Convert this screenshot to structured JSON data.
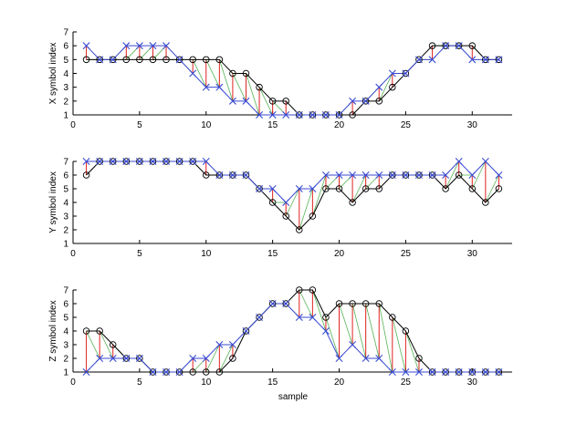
{
  "figure": {
    "xlabel": "sample"
  },
  "chart_data": [
    {
      "type": "line",
      "ylabel": "X  symbol index",
      "xlim": [
        0,
        33
      ],
      "ylim": [
        1,
        7
      ],
      "xticks": [
        0,
        5,
        10,
        15,
        20,
        25,
        30
      ],
      "yticks": [
        1,
        2,
        3,
        4,
        5,
        6,
        7
      ],
      "grid": false,
      "colors": {
        "circles": "#000000",
        "crosses": "#3a4bd1",
        "error": "#e02020",
        "match": "#2aa02a"
      },
      "x": [
        1,
        2,
        3,
        4,
        5,
        6,
        7,
        8,
        9,
        10,
        11,
        12,
        13,
        14,
        15,
        16,
        17,
        18,
        19,
        20,
        21,
        22,
        23,
        24,
        25,
        26,
        27,
        28,
        29,
        30,
        31,
        32
      ],
      "series": [
        {
          "marker": "circle",
          "values": [
            5,
            5,
            5,
            5,
            5,
            5,
            5,
            5,
            5,
            5,
            5,
            4,
            4,
            3,
            2,
            2,
            1,
            1,
            1,
            1,
            1,
            2,
            2,
            3,
            4,
            5,
            6,
            6,
            6,
            6,
            5,
            5
          ]
        },
        {
          "marker": "cross",
          "values": [
            6,
            5,
            5,
            6,
            6,
            6,
            6,
            5,
            4,
            3,
            3,
            2,
            2,
            1,
            1,
            1,
            1,
            1,
            1,
            1,
            2,
            2,
            3,
            4,
            4,
            5,
            5,
            6,
            6,
            5,
            5,
            5
          ]
        }
      ]
    },
    {
      "type": "line",
      "ylabel": "Y  symbol index",
      "xlim": [
        0,
        33
      ],
      "ylim": [
        1,
        7
      ],
      "xticks": [
        0,
        5,
        10,
        15,
        20,
        25,
        30
      ],
      "yticks": [
        1,
        2,
        3,
        4,
        5,
        6,
        7
      ],
      "grid": false,
      "colors": {
        "circles": "#000000",
        "crosses": "#3a4bd1",
        "error": "#e02020",
        "match": "#2aa02a"
      },
      "x": [
        1,
        2,
        3,
        4,
        5,
        6,
        7,
        8,
        9,
        10,
        11,
        12,
        13,
        14,
        15,
        16,
        17,
        18,
        19,
        20,
        21,
        22,
        23,
        24,
        25,
        26,
        27,
        28,
        29,
        30,
        31,
        32
      ],
      "series": [
        {
          "marker": "circle",
          "values": [
            6,
            7,
            7,
            7,
            7,
            7,
            7,
            7,
            7,
            6,
            6,
            6,
            6,
            5,
            4,
            3,
            2,
            3,
            5,
            5,
            4,
            5,
            5,
            6,
            6,
            6,
            6,
            5,
            6,
            5,
            4,
            5
          ]
        },
        {
          "marker": "cross",
          "values": [
            7,
            7,
            7,
            7,
            7,
            7,
            7,
            7,
            7,
            7,
            6,
            6,
            6,
            5,
            5,
            4,
            5,
            5,
            6,
            6,
            6,
            6,
            6,
            6,
            6,
            6,
            6,
            6,
            7,
            6,
            7,
            6
          ]
        }
      ]
    },
    {
      "type": "line",
      "ylabel": "Z  symbol index",
      "xlabel": "sample",
      "xlim": [
        0,
        33
      ],
      "ylim": [
        1,
        7
      ],
      "xticks": [
        0,
        5,
        10,
        15,
        20,
        25,
        30
      ],
      "yticks": [
        1,
        2,
        3,
        4,
        5,
        6,
        7
      ],
      "grid": false,
      "colors": {
        "circles": "#000000",
        "crosses": "#3a4bd1",
        "error": "#e02020",
        "match": "#2aa02a"
      },
      "x": [
        1,
        2,
        3,
        4,
        5,
        6,
        7,
        8,
        9,
        10,
        11,
        12,
        13,
        14,
        15,
        16,
        17,
        18,
        19,
        20,
        21,
        22,
        23,
        24,
        25,
        26,
        27,
        28,
        29,
        30,
        31,
        32
      ],
      "series": [
        {
          "marker": "circle",
          "values": [
            4,
            4,
            3,
            2,
            2,
            1,
            1,
            1,
            1,
            1,
            1,
            2,
            4,
            5,
            6,
            6,
            7,
            7,
            5,
            6,
            6,
            6,
            6,
            5,
            4,
            2,
            1,
            1,
            1,
            1,
            1,
            1
          ]
        },
        {
          "marker": "cross",
          "values": [
            1,
            2,
            2,
            2,
            2,
            1,
            1,
            1,
            2,
            2,
            3,
            3,
            4,
            5,
            6,
            6,
            5,
            5,
            4,
            2,
            3,
            2,
            2,
            1,
            1,
            1,
            1,
            1,
            1,
            1,
            1,
            1
          ]
        }
      ]
    }
  ]
}
